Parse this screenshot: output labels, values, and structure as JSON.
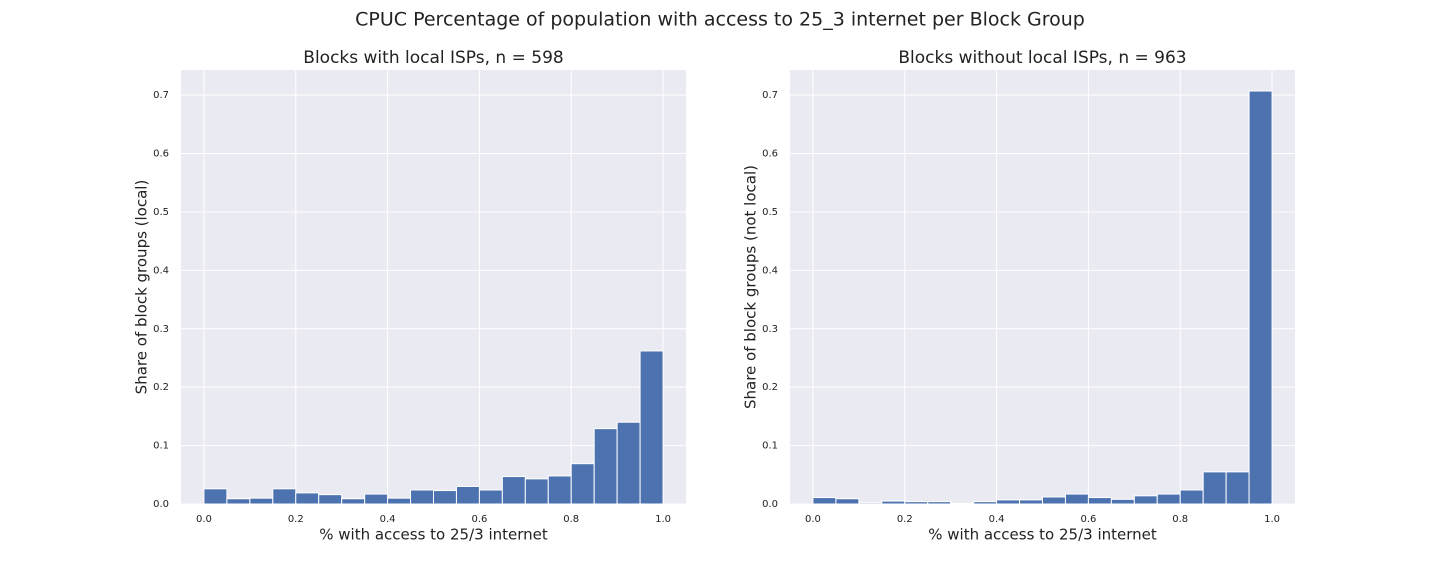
{
  "title": "CPUC Percentage of population with access to 25_3 internet per Block Group",
  "chart_data": [
    {
      "type": "histogram",
      "title": "Blocks with local ISPs, n = 598",
      "x_label": "% with access to 25/3 internet",
      "y_label": "Share of block groups (local)",
      "color": "#4c72b0",
      "grid": true,
      "bins": [
        0,
        0.05,
        0.1,
        0.15,
        0.2,
        0.25,
        0.3,
        0.35,
        0.4,
        0.45,
        0.5,
        0.55,
        0.6,
        0.65,
        0.7,
        0.75,
        0.8,
        0.85,
        0.9,
        0.95,
        1
      ],
      "values": [
        0.026,
        0.009,
        0.01,
        0.026,
        0.019,
        0.016,
        0.009,
        0.017,
        0.01,
        0.024,
        0.023,
        0.03,
        0.024,
        0.047,
        0.043,
        0.048,
        0.069,
        0.129,
        0.14,
        0.262
      ],
      "xlim": [
        -0.05,
        1.05
      ],
      "ylim": [
        0,
        0.743
      ],
      "xticks": [
        {
          "value": 0,
          "label": "0.0"
        },
        0.2,
        0.4,
        0.6,
        0.8,
        {
          "value": 1,
          "label": "1.0"
        }
      ],
      "yticks": [
        {
          "value": 0,
          "label": "0.0"
        },
        0.1,
        0.2,
        0.3,
        0.4,
        0.5,
        0.6,
        0.7
      ]
    },
    {
      "type": "histogram",
      "title": "Blocks without local ISPs, n = 963",
      "x_label": "% with access to 25/3 internet",
      "y_label": "Share of block groups (not local)",
      "color": "#4c72b0",
      "grid": true,
      "bins": [
        0,
        0.05,
        0.1,
        0.15,
        0.2,
        0.25,
        0.3,
        0.35,
        0.4,
        0.45,
        0.5,
        0.55,
        0.6,
        0.65,
        0.7,
        0.75,
        0.8,
        0.85,
        0.9,
        0.95,
        1
      ],
      "values": [
        0.011,
        0.009,
        0.002,
        0.005,
        0.004,
        0.004,
        0.001,
        0.004,
        0.007,
        0.007,
        0.012,
        0.017,
        0.011,
        0.008,
        0.014,
        0.017,
        0.024,
        0.055,
        0.055,
        0.707
      ],
      "xlim": [
        -0.05,
        1.05
      ],
      "ylim": [
        0,
        0.743
      ],
      "xticks": [
        {
          "value": 0,
          "label": "0.0"
        },
        0.2,
        0.4,
        0.6,
        0.8,
        {
          "value": 1,
          "label": "1.0"
        }
      ],
      "yticks": [
        {
          "value": 0,
          "label": "0.0"
        },
        0.1,
        0.2,
        0.3,
        0.4,
        0.5,
        0.6,
        0.7
      ]
    }
  ]
}
